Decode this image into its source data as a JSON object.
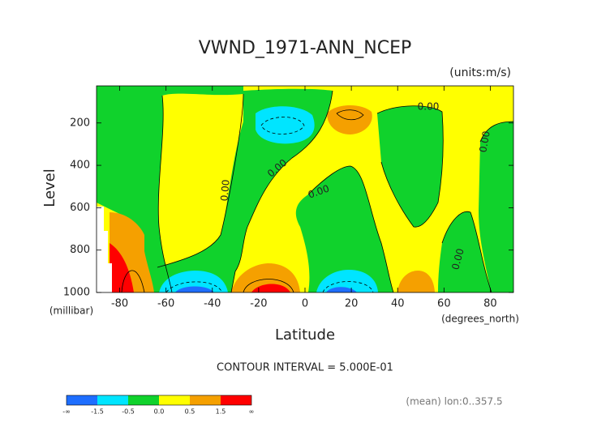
{
  "chart_data": {
    "type": "contour",
    "title": "VWND_1971-ANN_NCEP",
    "units": "(units:m/s)",
    "y_label": "Level",
    "y_unit": "(millibar)",
    "x_label": "Latitude",
    "x_unit": "(degrees_north)",
    "xlim": [
      -90,
      90
    ],
    "xticks": [
      -80,
      -60,
      -40,
      -20,
      0,
      20,
      40,
      60,
      80
    ],
    "ylim": [
      1000,
      25
    ],
    "yticks": [
      200,
      400,
      600,
      800,
      1000
    ],
    "contour_interval": "CONTOUR INTERVAL = 5.000E-01",
    "contour_labels": [
      "0.00",
      "0.00",
      "0.00",
      "0.00",
      "0.00",
      "0.00"
    ],
    "footnote": "(mean) lon:0..357.5",
    "colorbar": {
      "labels": [
        "-∞",
        "-1.5",
        "-0.5",
        "0.0",
        "0.5",
        "1.5",
        "∞"
      ],
      "colors": [
        "#1e6eff",
        "#00e5ff",
        "#10d22c",
        "#ffff00",
        "#f5a000",
        "#ff0000"
      ]
    }
  }
}
